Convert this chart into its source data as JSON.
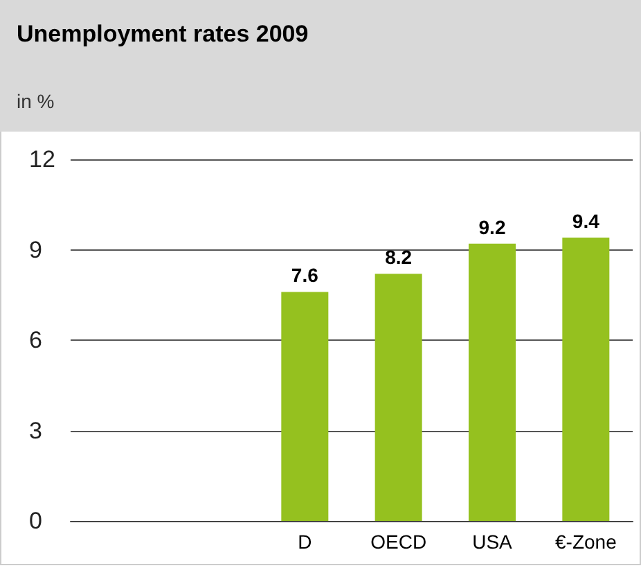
{
  "chart_data": {
    "type": "bar",
    "title": "Unemployment rates 2009",
    "subtitle": "in %",
    "categories": [
      null,
      null,
      "D",
      "OECD",
      "USA",
      "€-Zone"
    ],
    "values": [
      null,
      null,
      7.6,
      8.2,
      9.2,
      9.4
    ],
    "color": "#95c11f",
    "ylim": [
      0,
      12
    ],
    "yticks": [
      0,
      3,
      6,
      9,
      12
    ],
    "grid": "y",
    "data_labels": true
  }
}
